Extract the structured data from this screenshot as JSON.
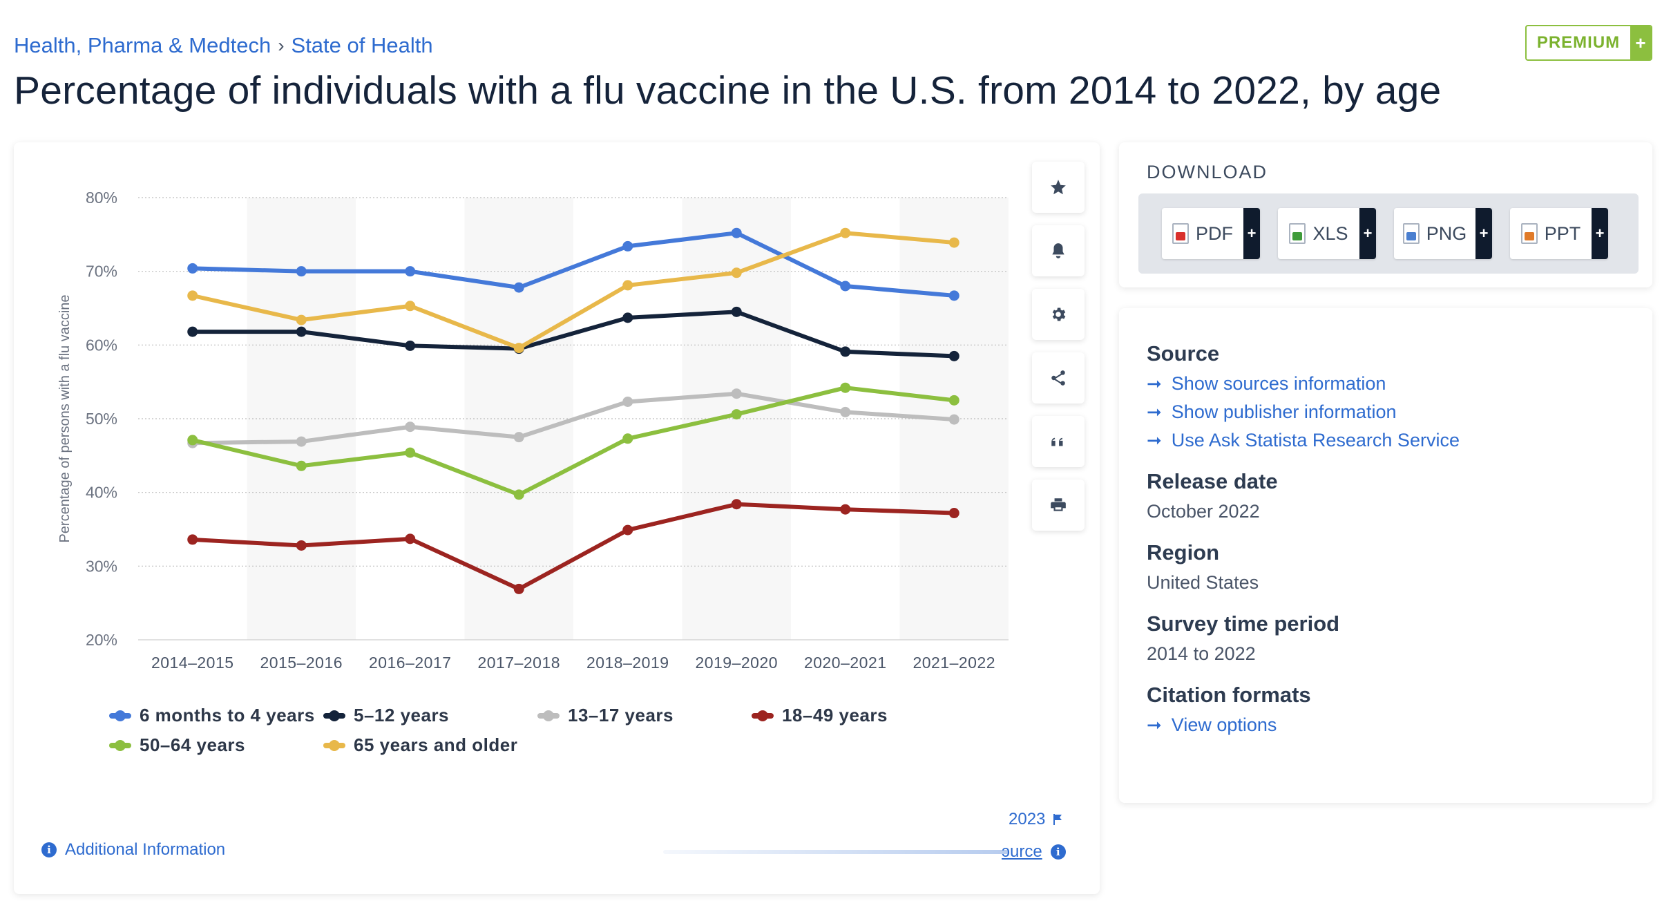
{
  "breadcrumb": {
    "parent": "Health, Pharma & Medtech",
    "separator": "›",
    "current": "State of Health"
  },
  "premium": {
    "label": "PREMIUM",
    "plus": "+"
  },
  "title": "Percentage of individuals with a flu vaccine in the U.S. from 2014 to 2022, by age",
  "colors": {
    "accent": "#2e6bcf",
    "premium": "#8cbf3f",
    "dark": "#0f1b2d"
  },
  "tools": [
    "star-icon",
    "bell-icon",
    "gear-icon",
    "share-icon",
    "quote-icon",
    "print-icon"
  ],
  "chart_data": {
    "type": "line",
    "title": "",
    "ylabel": "Percentage of persons with a flu vaccine",
    "xlabel": "",
    "ylim": [
      20,
      80
    ],
    "y_ticks": [
      "20%",
      "30%",
      "40%",
      "50%",
      "60%",
      "70%",
      "80%"
    ],
    "y_tick_values": [
      20,
      30,
      40,
      50,
      60,
      70,
      80
    ],
    "grid": true,
    "legend_position": "bottom",
    "categories": [
      "2014–2015",
      "2015–2016",
      "2016–2017",
      "2017–2018",
      "2018–2019",
      "2019–2020",
      "2020–2021",
      "2021–2022"
    ],
    "series": [
      {
        "name": "6 months to 4 years",
        "color": "#4479d9",
        "values": [
          70.4,
          70.0,
          70.0,
          67.8,
          73.4,
          75.2,
          68.0,
          66.7
        ]
      },
      {
        "name": "5–12 years",
        "color": "#14233a",
        "values": [
          61.8,
          61.8,
          59.9,
          59.5,
          63.7,
          64.5,
          59.1,
          58.5
        ]
      },
      {
        "name": "13–17 years",
        "color": "#bdbdbd",
        "values": [
          46.7,
          46.9,
          48.9,
          47.5,
          52.3,
          53.4,
          50.9,
          49.9
        ]
      },
      {
        "name": "18–49 years",
        "color": "#9c2420",
        "values": [
          33.6,
          32.8,
          33.7,
          26.9,
          34.9,
          38.4,
          37.7,
          37.2
        ]
      },
      {
        "name": "50–64 years",
        "color": "#8cbf3f",
        "values": [
          47.1,
          43.6,
          45.4,
          39.7,
          47.3,
          50.6,
          54.2,
          52.5
        ]
      },
      {
        "name": "65 years and older",
        "color": "#e8b84a",
        "values": [
          66.7,
          63.4,
          65.3,
          59.6,
          68.1,
          69.8,
          75.2,
          73.9
        ]
      }
    ]
  },
  "footer": {
    "year": "2023",
    "additional_info": "Additional Information",
    "show_source": "ɔurce",
    "info_glyph": "i"
  },
  "download": {
    "title": "DOWNLOAD",
    "buttons": [
      {
        "label": "PDF",
        "icon": "pdf-file-icon",
        "color": "#d9302c"
      },
      {
        "label": "XLS",
        "icon": "xls-file-icon",
        "color": "#3f9b3a"
      },
      {
        "label": "PNG",
        "icon": "png-file-icon",
        "color": "#4a7fd0"
      },
      {
        "label": "PPT",
        "icon": "ppt-file-icon",
        "color": "#e07b2a"
      }
    ],
    "plus": "+"
  },
  "info": {
    "source_heading": "Source",
    "links": [
      "Show sources information",
      "Show publisher information",
      "Use Ask Statista Research Service"
    ],
    "release_heading": "Release date",
    "release_value": "October 2022",
    "region_heading": "Region",
    "region_value": "United States",
    "survey_heading": "Survey time period",
    "survey_value": "2014 to 2022",
    "citation_heading": "Citation formats",
    "citation_link": "View options",
    "arrow": "➞"
  }
}
